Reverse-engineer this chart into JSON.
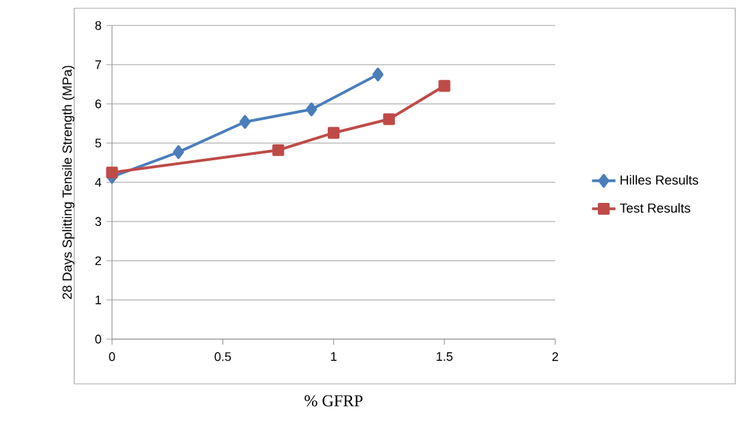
{
  "chart_data": {
    "type": "line",
    "xlabel": "% GFRP",
    "ylabel": "28 Days Splitting Tensile Strength (MPa)",
    "series": [
      {
        "name": "Hilles Results",
        "color": "#4a7ebb",
        "marker": "diamond",
        "x": [
          0,
          0.3,
          0.6,
          0.9,
          1.2
        ],
        "values": [
          4.14,
          4.77,
          5.54,
          5.86,
          6.75
        ]
      },
      {
        "name": "Test Results",
        "color": "#be4b48",
        "marker": "square",
        "x": [
          0,
          0.75,
          1,
          1.25,
          1.5
        ],
        "values": [
          4.25,
          4.82,
          5.26,
          5.61,
          6.46
        ]
      }
    ],
    "xlim": [
      0,
      2
    ],
    "xticks": [
      0,
      0.5,
      1,
      1.5,
      2
    ],
    "ylim": [
      0,
      8
    ],
    "yticks": [
      0,
      1,
      2,
      3,
      4,
      5,
      6,
      7,
      8
    ],
    "grid": "y",
    "legend": "right",
    "line_style": "solid"
  }
}
